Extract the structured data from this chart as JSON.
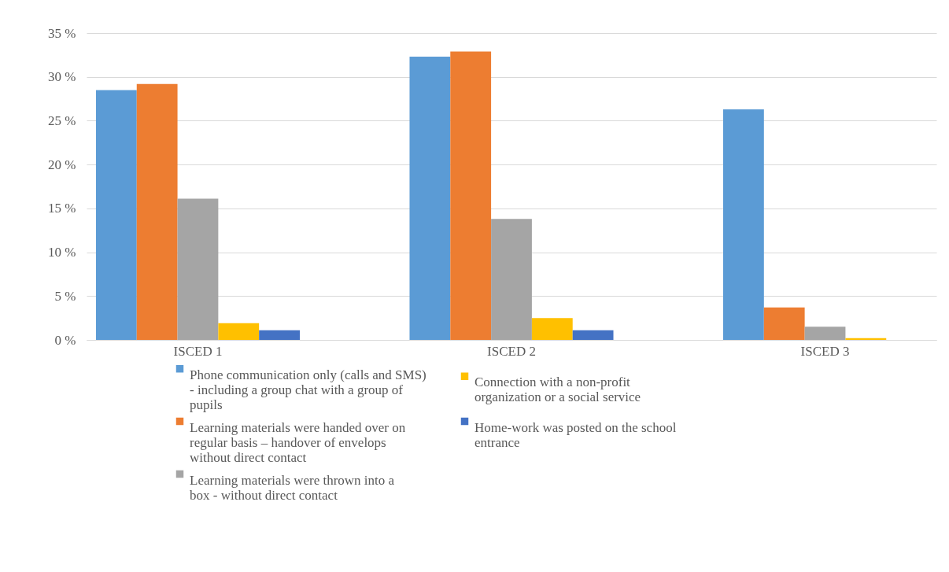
{
  "chart_data": {
    "type": "bar",
    "categories": [
      "ISCED 1",
      "ISCED 2",
      "ISCED 3"
    ],
    "series": [
      {
        "name": "Phone communication only (calls and SMS) - including a group chat with a group of pupils",
        "color": "#5b9bd5",
        "values": [
          28.5,
          32.3,
          26.3
        ]
      },
      {
        "name": "Learning materials were handed over on regular basis – handover of envelops without direct contact",
        "color": "#ed7d31",
        "values": [
          29.2,
          32.9,
          3.7
        ]
      },
      {
        "name": "Learning materials were thrown into a box - without direct contact",
        "color": "#a5a5a5",
        "values": [
          16.1,
          13.8,
          1.5
        ]
      },
      {
        "name": "Connection with a non-profit organization or a social service",
        "color": "#ffc000",
        "values": [
          1.9,
          2.5,
          0.2
        ]
      },
      {
        "name": "Home-work was posted on the school entrance",
        "color": "#4472c4",
        "values": [
          1.1,
          1.1,
          null
        ]
      }
    ],
    "ylim": [
      0,
      35
    ],
    "yticks": [
      {
        "value": 0,
        "label": "0 %"
      },
      {
        "value": 5,
        "label": "5 %"
      },
      {
        "value": 10,
        "label": "10 %"
      },
      {
        "value": 15,
        "label": "15 %"
      },
      {
        "value": 20,
        "label": "20 %"
      },
      {
        "value": 25,
        "label": "25 %"
      },
      {
        "value": 30,
        "label": "30 %"
      },
      {
        "value": 35,
        "label": "35 %"
      }
    ],
    "grid": "y",
    "legend": "bottom"
  }
}
